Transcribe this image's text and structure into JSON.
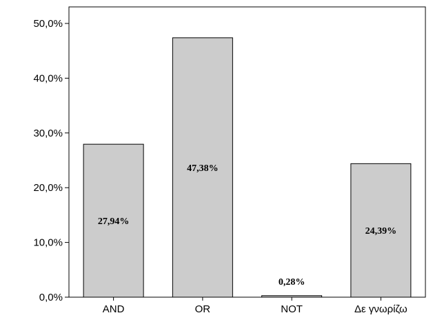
{
  "chart_data": {
    "type": "bar",
    "categories": [
      "AND",
      "OR",
      "NOT",
      "Δε γνωρίζω"
    ],
    "values": [
      27.94,
      47.38,
      0.28,
      24.39
    ],
    "data_labels": [
      "27,94%",
      "47,38%",
      "0,28%",
      "24,39%"
    ],
    "ylim": [
      0,
      50
    ],
    "y_ticks": [
      0,
      10,
      20,
      30,
      40,
      50
    ],
    "y_tick_labels": [
      "0,0%",
      "10,0%",
      "20,0%",
      "30,0%",
      "40,0%",
      "50,0%"
    ],
    "title": "",
    "xlabel": "",
    "ylabel": "",
    "grid": false,
    "legend": "none",
    "colors": {
      "bar_fill": "#cccccc",
      "bar_stroke": "#000000",
      "axis": "#000000",
      "background": "#ffffff"
    }
  }
}
